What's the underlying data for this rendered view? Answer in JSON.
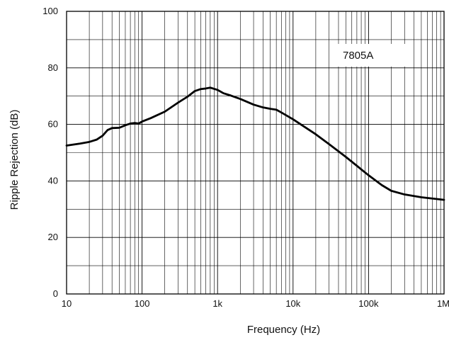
{
  "chart_data": {
    "type": "line",
    "title": "",
    "xlabel": "Frequency (Hz)",
    "ylabel": "Ripple Rejection (dB)",
    "x_scale": "log",
    "xlim": [
      10,
      1000000
    ],
    "ylim": [
      0,
      100
    ],
    "x_ticks": [
      {
        "value": 10,
        "label": "10"
      },
      {
        "value": 100,
        "label": "100"
      },
      {
        "value": 1000,
        "label": "1k"
      },
      {
        "value": 10000,
        "label": "10k"
      },
      {
        "value": 100000,
        "label": "100k"
      },
      {
        "value": 1000000,
        "label": "1M"
      }
    ],
    "y_ticks": [
      {
        "value": 0,
        "label": "0"
      },
      {
        "value": 20,
        "label": "20"
      },
      {
        "value": 40,
        "label": "40"
      },
      {
        "value": 60,
        "label": "60"
      },
      {
        "value": 80,
        "label": "80"
      },
      {
        "value": 100,
        "label": "100"
      }
    ],
    "grid": true,
    "legend_position": "top-right",
    "series": [
      {
        "name": "7805A",
        "color": "#000000",
        "points": [
          [
            10,
            52.5
          ],
          [
            15,
            53.2
          ],
          [
            20,
            53.8
          ],
          [
            25,
            54.6
          ],
          [
            30,
            56.0
          ],
          [
            35,
            58.0
          ],
          [
            40,
            58.7
          ],
          [
            50,
            58.8
          ],
          [
            60,
            59.7
          ],
          [
            70,
            60.3
          ],
          [
            80,
            60.5
          ],
          [
            90,
            60.3
          ],
          [
            100,
            61.0
          ],
          [
            130,
            62.2
          ],
          [
            200,
            64.5
          ],
          [
            300,
            67.7
          ],
          [
            400,
            69.8
          ],
          [
            500,
            71.8
          ],
          [
            600,
            72.5
          ],
          [
            700,
            72.7
          ],
          [
            800,
            73.0
          ],
          [
            1000,
            72.2
          ],
          [
            1200,
            71.0
          ],
          [
            1500,
            70.2
          ],
          [
            2000,
            69.0
          ],
          [
            3000,
            67.0
          ],
          [
            4000,
            66.0
          ],
          [
            5000,
            65.5
          ],
          [
            6000,
            65.2
          ],
          [
            7000,
            64.2
          ],
          [
            10000,
            61.8
          ],
          [
            20000,
            56.5
          ],
          [
            30000,
            53.0
          ],
          [
            50000,
            48.5
          ],
          [
            100000,
            42.0
          ],
          [
            150000,
            38.5
          ],
          [
            200000,
            36.5
          ],
          [
            300000,
            35.2
          ],
          [
            500000,
            34.2
          ],
          [
            1000000,
            33.3
          ]
        ]
      }
    ]
  }
}
